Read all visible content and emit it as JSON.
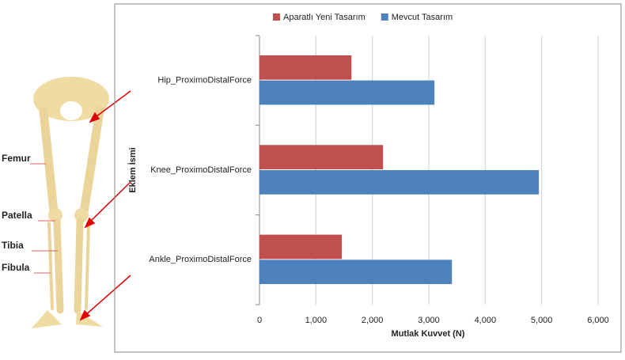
{
  "anatomy_labels": [
    "Femur",
    "Patella",
    "Tibia",
    "Fibula"
  ],
  "chart_data": {
    "type": "barh",
    "categories": [
      "Hip_ProximoDistalForce",
      "Knee_ProximoDistalForce",
      "Ankle_ProximoDistalForce"
    ],
    "series": [
      {
        "name": "Aparatlı Yeni Tasarım",
        "color": "#c0504d",
        "values": [
          1630,
          2190,
          1460
        ]
      },
      {
        "name": "Mevcut Tasarım",
        "color": "#4f81bd",
        "values": [
          3100,
          4950,
          3410
        ]
      }
    ],
    "xlabel": "Mutlak Kuvvet (N)",
    "ylabel": "Eklem İsmi",
    "xlim": [
      0,
      6000
    ],
    "xticks": [
      0,
      {
        "value": 1000,
        "label": "1,000"
      },
      {
        "value": 2000,
        "label": "2,000"
      },
      {
        "value": 3000,
        "label": "3,000"
      },
      {
        "value": 4000,
        "label": "4,000"
      },
      {
        "value": 5000,
        "label": "5,000"
      },
      {
        "value": 6000,
        "label": "6,000"
      }
    ],
    "grid": true,
    "legend": "top"
  }
}
